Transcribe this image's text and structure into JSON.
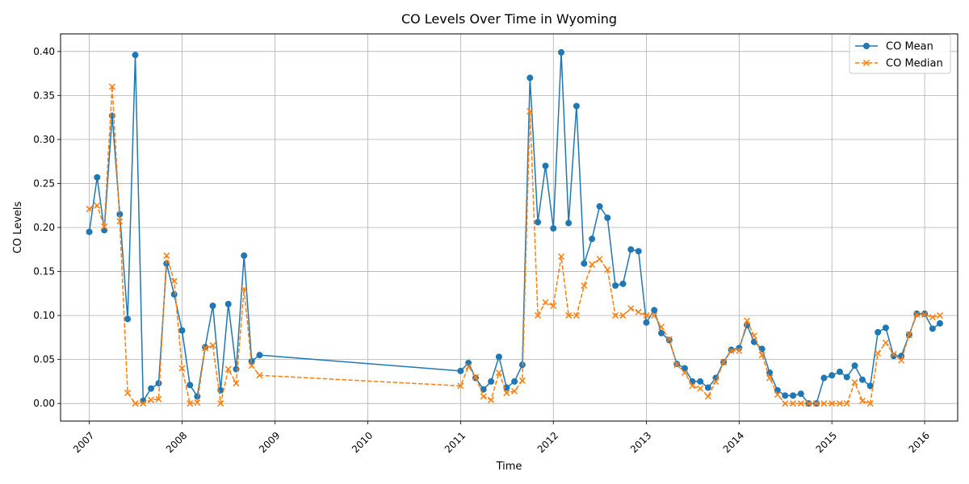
{
  "chart_data": {
    "type": "line",
    "title": "CO Levels Over Time in Wyoming",
    "xlabel": "Time",
    "ylabel": "CO Levels",
    "xlim": [
      "2006-09-10",
      "2016-05-10"
    ],
    "ylim": [
      -0.02,
      0.42
    ],
    "x_ticks": [
      "2007",
      "2008",
      "2009",
      "2010",
      "2011",
      "2012",
      "2013",
      "2014",
      "2015",
      "2016"
    ],
    "y_ticks": [
      "0.00",
      "0.05",
      "0.10",
      "0.15",
      "0.20",
      "0.25",
      "0.30",
      "0.35",
      "0.40"
    ],
    "grid": true,
    "legend_position": "top-right",
    "x": [
      "2007-01",
      "2007-02",
      "2007-03",
      "2007-04",
      "2007-05",
      "2007-06",
      "2007-07",
      "2007-08",
      "2007-09",
      "2007-10",
      "2007-11",
      "2007-12",
      "2008-01",
      "2008-02",
      "2008-03",
      "2008-04",
      "2008-05",
      "2008-06",
      "2008-07",
      "2008-08",
      "2008-09",
      "2008-10",
      "2008-11",
      "2011-01",
      "2011-02",
      "2011-03",
      "2011-04",
      "2011-05",
      "2011-06",
      "2011-07",
      "2011-08",
      "2011-09",
      "2011-10",
      "2011-11",
      "2011-12",
      "2012-01",
      "2012-02",
      "2012-03",
      "2012-04",
      "2012-05",
      "2012-06",
      "2012-07",
      "2012-08",
      "2012-09",
      "2012-10",
      "2012-11",
      "2012-12",
      "2013-01",
      "2013-02",
      "2013-03",
      "2013-04",
      "2013-05",
      "2013-06",
      "2013-07",
      "2013-08",
      "2013-09",
      "2013-10",
      "2013-11",
      "2013-12",
      "2014-01",
      "2014-02",
      "2014-03",
      "2014-04",
      "2014-05",
      "2014-06",
      "2014-07",
      "2014-08",
      "2014-09",
      "2014-10",
      "2014-11",
      "2014-12",
      "2015-01",
      "2015-02",
      "2015-03",
      "2015-04",
      "2015-05",
      "2015-06",
      "2015-07",
      "2015-08",
      "2015-09",
      "2015-10",
      "2015-11",
      "2015-12",
      "2016-01",
      "2016-02",
      "2016-03"
    ],
    "series": [
      {
        "name": "CO Mean",
        "color": "#1f77b4",
        "marker": "circle",
        "linestyle": "solid",
        "values": [
          0.195,
          0.257,
          0.197,
          0.327,
          0.215,
          0.096,
          0.396,
          0.003,
          0.017,
          0.023,
          0.159,
          0.124,
          0.083,
          0.021,
          0.008,
          0.064,
          0.111,
          0.015,
          0.113,
          0.039,
          0.168,
          0.048,
          0.055,
          0.037,
          0.046,
          0.029,
          0.016,
          0.025,
          0.053,
          0.018,
          0.025,
          0.044,
          0.37,
          0.206,
          0.27,
          0.199,
          0.399,
          0.205,
          0.338,
          0.159,
          0.187,
          0.224,
          0.211,
          0.134,
          0.136,
          0.175,
          0.173,
          0.092,
          0.106,
          0.08,
          0.072,
          0.045,
          0.04,
          0.025,
          0.025,
          0.018,
          0.029,
          0.047,
          0.061,
          0.063,
          0.089,
          0.07,
          0.062,
          0.035,
          0.015,
          0.009,
          0.009,
          0.011,
          0.0,
          0.0,
          0.029,
          0.032,
          0.036,
          0.03,
          0.043,
          0.027,
          0.02,
          0.081,
          0.086,
          0.054,
          0.054,
          0.078,
          0.102,
          0.102,
          0.085,
          0.091
        ]
      },
      {
        "name": "CO Median",
        "color": "#ff7f0e",
        "marker": "x",
        "linestyle": "dashed",
        "values": [
          0.221,
          0.225,
          0.201,
          0.36,
          0.207,
          0.012,
          0.0,
          0.0,
          0.004,
          0.005,
          0.168,
          0.139,
          0.04,
          0.0,
          0.001,
          0.063,
          0.066,
          0.0,
          0.039,
          0.023,
          0.13,
          0.043,
          0.032,
          0.02,
          0.042,
          0.03,
          0.008,
          0.004,
          0.035,
          0.012,
          0.014,
          0.026,
          0.332,
          0.1,
          0.115,
          0.111,
          0.167,
          0.1,
          0.1,
          0.134,
          0.158,
          0.164,
          0.152,
          0.1,
          0.1,
          0.108,
          0.104,
          0.1,
          0.1,
          0.087,
          0.073,
          0.044,
          0.035,
          0.02,
          0.017,
          0.008,
          0.025,
          0.047,
          0.06,
          0.06,
          0.094,
          0.077,
          0.055,
          0.029,
          0.01,
          0.0,
          0.0,
          0.0,
          0.0,
          0.0,
          0.0,
          0.0,
          0.0,
          0.0,
          0.024,
          0.003,
          0.0,
          0.057,
          0.069,
          0.056,
          0.049,
          0.078,
          0.101,
          0.101,
          0.098,
          0.1
        ]
      }
    ]
  }
}
